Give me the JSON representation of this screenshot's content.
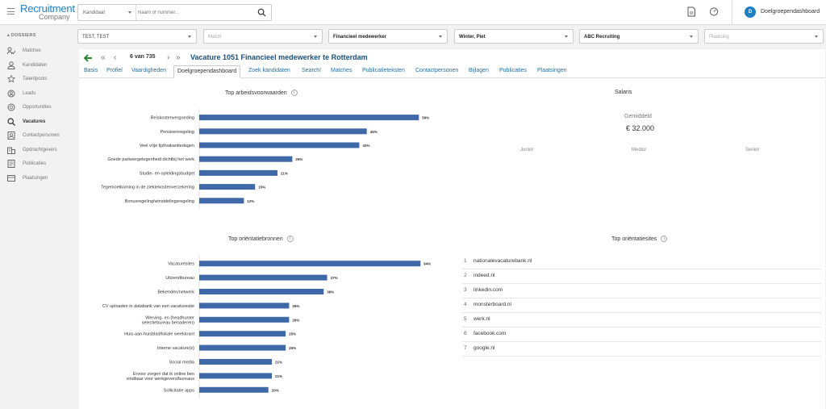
{
  "app": {
    "logo_top": "Recruitment",
    "logo_bottom": "Company"
  },
  "search": {
    "type_label": "Kandidaat",
    "placeholder": "Naam of nummer..."
  },
  "user": {
    "initial": "D",
    "name": "Doelgroependashboard"
  },
  "sidebar": {
    "heading": "DOSSIERS",
    "items": [
      {
        "label": "Matches",
        "icon": "matches-icon"
      },
      {
        "label": "Kandidaten",
        "icon": "candidates-icon"
      },
      {
        "label": "Talentpools",
        "icon": "talentpools-icon"
      },
      {
        "label": "Leads",
        "icon": "leads-icon"
      },
      {
        "label": "Opportunities",
        "icon": "opportunities-icon"
      },
      {
        "label": "Vacatures",
        "icon": "vacancies-icon",
        "active": true
      },
      {
        "label": "Contactpersonen",
        "icon": "contacts-icon"
      },
      {
        "label": "Opdrachtgevers",
        "icon": "clients-icon"
      },
      {
        "label": "Publicaties",
        "icon": "publications-icon"
      },
      {
        "label": "Plaatsingen",
        "icon": "placements-icon"
      }
    ]
  },
  "filters": [
    {
      "value": "TEST, TEST",
      "placeholder": false
    },
    {
      "value": "Match",
      "placeholder": true
    },
    {
      "value": "Financieel medewerker",
      "placeholder": false
    },
    {
      "value": "Winter, Piet",
      "placeholder": false
    },
    {
      "value": "ABC Recruiting",
      "placeholder": false
    },
    {
      "value": "Plaatsing",
      "placeholder": true
    }
  ],
  "record": {
    "counter": "6 van 735",
    "title": "Vacature 1051 Financieel medewerker te Rotterdam"
  },
  "tabs": [
    {
      "label": "Basis"
    },
    {
      "label": "Profiel"
    },
    {
      "label": "Vaardigheden"
    },
    {
      "label": "Doelgroependashboard",
      "active": true
    },
    {
      "label": "Zoek kandidaten"
    },
    {
      "label": "Search!"
    },
    {
      "label": "Matches"
    },
    {
      "label": "Publicatieteksten"
    },
    {
      "label": "Contactpersonen"
    },
    {
      "label": "Bijlagen"
    },
    {
      "label": "Publicaties"
    },
    {
      "label": "Plaatsingen"
    }
  ],
  "salary": {
    "title": "Salaris",
    "avg_label": "Gemiddeld",
    "avg_value": "€ 32.000",
    "columns": [
      "Junior",
      "Medior",
      "Senior"
    ]
  },
  "sites": {
    "title": "Top oriëntatiesites",
    "items": [
      "nationalevacaturebank.nl",
      "indeed.nl",
      "linkedin.com",
      "monsterboard.nl",
      "werk.nl",
      "facebook.com",
      "google.nl"
    ]
  },
  "colors": {
    "bar": "#3e68a8",
    "accent": "#1f7fc4",
    "back_arrow": "#2d8a3e"
  },
  "chart_data": [
    {
      "type": "bar",
      "orientation": "horizontal",
      "title": "Top arbeidsvoorwaarden",
      "categories": [
        "Reiskostenvergoeding",
        "Pensioenregeling",
        "Veel vrije tijd/vakantiedagen",
        "Goede parkeergelegenheid dichtbij het werk",
        "Studie- en opleidingsbudget",
        "Tegemoetkoming in de ziektekostenverzekering",
        "Bonusregeling/winstdelingsregeling"
      ],
      "values": [
        59,
        45,
        43,
        25,
        21,
        15,
        12
      ],
      "labels": [
        "59%",
        "45%",
        "43%",
        "25%",
        "21%",
        "15%",
        "12%"
      ],
      "xlim": [
        0,
        65
      ]
    },
    {
      "type": "bar",
      "orientation": "horizontal",
      "title": "Top oriëntatiebronnen",
      "categories": [
        "Vacaturesites",
        "Uitzendbureau",
        "Bekenden/netwerk",
        "CV uploaden in databank van een vacaturesite",
        "Werving- en selectiebureau (headhunter benaderen)",
        "Huis-aan-huisblad/lokale weekkrant",
        "Interne vacature(s)",
        "Social media",
        "Ervoor zorgen dat ik online vindbaar ben voor werkgevers/bureaus",
        "Sollicitatie apps"
      ],
      "values": [
        64,
        37,
        36,
        26,
        26,
        25,
        25,
        21,
        21,
        20
      ],
      "labels": [
        "64%",
        "37%",
        "36%",
        "26%",
        "26%",
        "25%",
        "25%",
        "21%",
        "21%",
        "20%"
      ],
      "xlim": [
        0,
        70
      ]
    }
  ]
}
